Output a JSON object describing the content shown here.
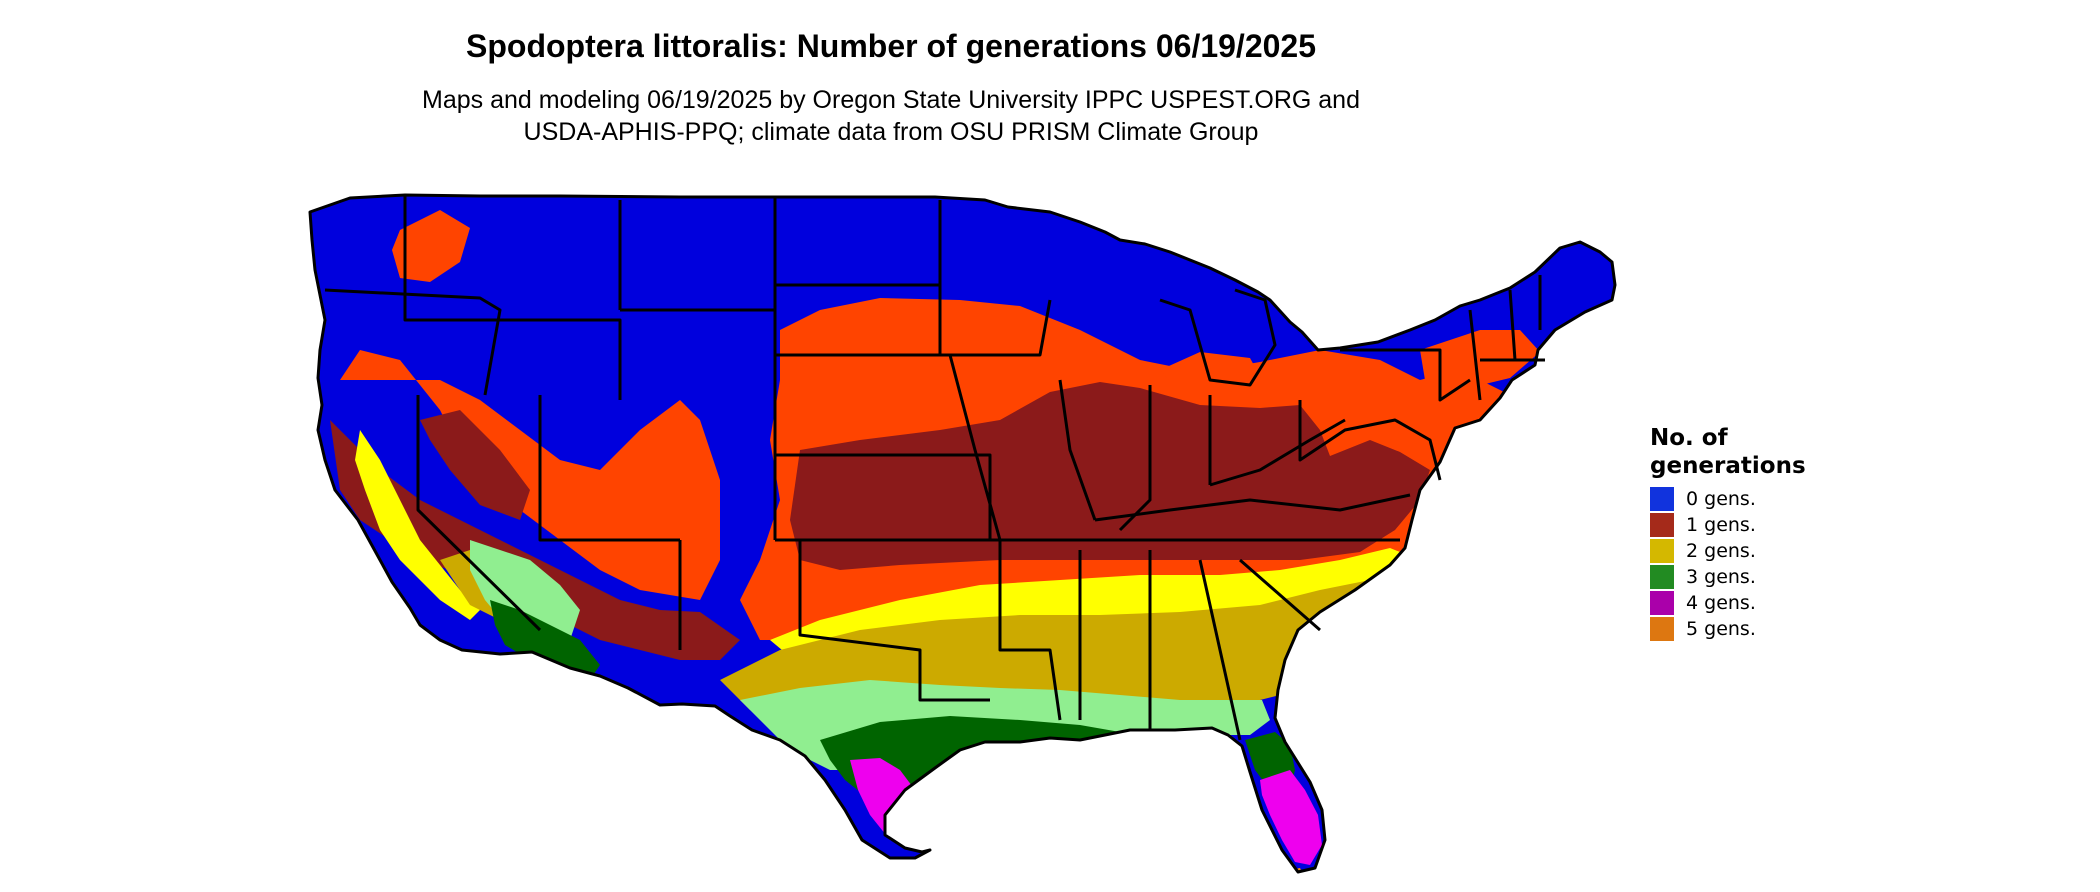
{
  "title": "Spodoptera littoralis: Number of generations 06/19/2025",
  "subtitle": {
    "line1": "Maps and modeling 06/19/2025 by Oregon State University IPPC USPEST.ORG and",
    "line2": "USDA-APHIS-PPQ; climate data from OSU PRISM Climate Group"
  },
  "legend": {
    "title_line1": "No. of",
    "title_line2": "generations",
    "items": [
      {
        "label": "0 gens.",
        "color": "#1133dd"
      },
      {
        "label": "1 gens.",
        "color": "#a52a1a"
      },
      {
        "label": "2 gens.",
        "color": "#d4b800"
      },
      {
        "label": "3 gens.",
        "color": "#228b22"
      },
      {
        "label": "4 gens.",
        "color": "#aa00aa"
      },
      {
        "label": "5 gens.",
        "color": "#dd7711"
      }
    ]
  },
  "map_colors": {
    "zero": "#0000dd",
    "one_low": "#ff4400",
    "one_high": "#8b1a1a",
    "two_low": "#ffff00",
    "two_high": "#ccaa00",
    "three_low": "#90ee90",
    "three_high": "#006400",
    "four": "#ee00ee",
    "five": "#ff8c00",
    "border": "#000000"
  }
}
